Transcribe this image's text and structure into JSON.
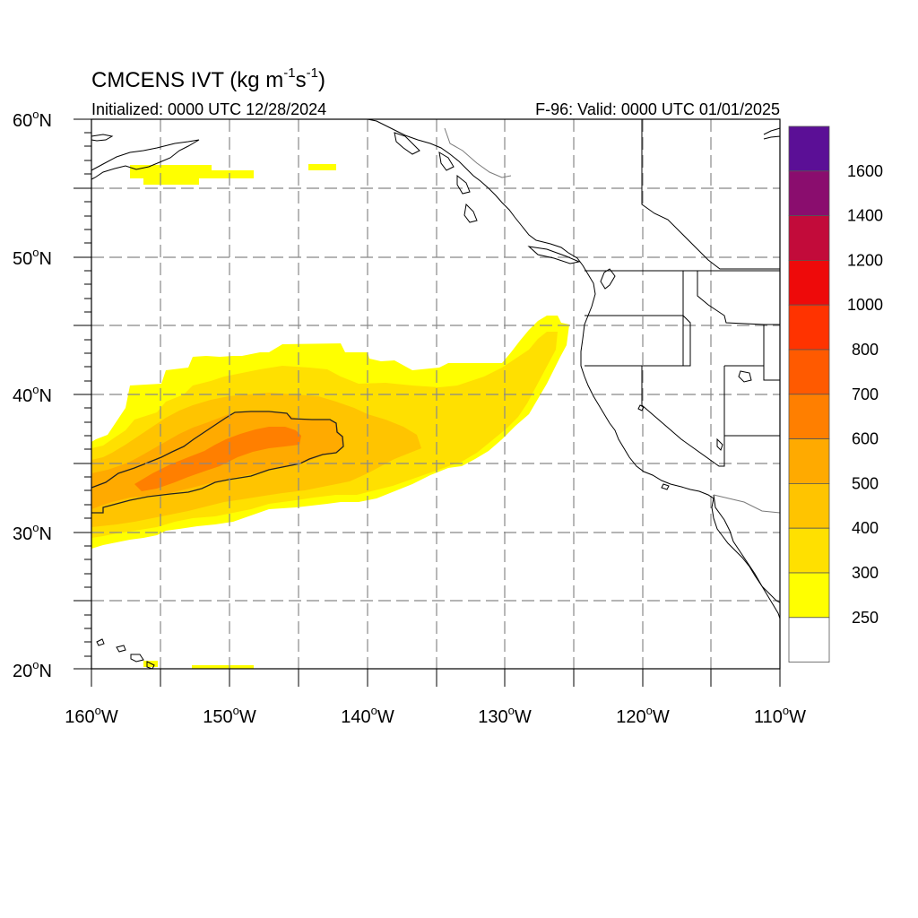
{
  "title": {
    "main": "CMCENS IVT (kg m",
    "unit_sup1": "-1",
    "unit_mid": "s",
    "unit_sup2": "-1",
    "unit_close": ")",
    "initialized": "Initialized: 0000 UTC 12/28/2024",
    "valid": "F-96: Valid: 0000 UTC 01/01/2025"
  },
  "map": {
    "lon_range": [
      -160,
      -110
    ],
    "lat_range": [
      20,
      60
    ],
    "lon_labels": [
      "160",
      "150",
      "140",
      "130",
      "120",
      "110"
    ],
    "lon_suffix": "W",
    "lat_labels": [
      "60",
      "50",
      "40",
      "30",
      "20"
    ],
    "lat_suffix": "N",
    "degree": "o",
    "grid": "dashed",
    "contour_level": 500
  },
  "colorbar": {
    "labels": [
      "1600",
      "1400",
      "1200",
      "1000",
      "800",
      "700",
      "600",
      "500",
      "400",
      "300",
      "250"
    ],
    "colors_top_to_bottom": [
      "#5b0f96",
      "#8a0d6e",
      "#c20b3a",
      "#ee0a0a",
      "#ff3300",
      "#ff5a00",
      "#ff7f00",
      "#ffaa00",
      "#ffc400",
      "#ffe000",
      "#ffff00",
      "#ffffff"
    ]
  },
  "chart_data": {
    "type": "heatmap",
    "variable": "IVT",
    "region": {
      "lon": [
        -160,
        -110
      ],
      "lat": [
        20,
        60
      ]
    },
    "levels": [
      250,
      300,
      400,
      500,
      600,
      700,
      800,
      1000,
      1200,
      1400,
      1600
    ],
    "features": [
      {
        "level_min": 250,
        "lon_range": [
          -160,
          -125
        ],
        "lat_range": [
          29,
          45.5
        ]
      },
      {
        "level_min": 300,
        "lon_range": [
          -160,
          -126
        ],
        "lat_range": [
          30,
          45
        ]
      },
      {
        "level_min": 400,
        "lon_range": [
          -160,
          -137
        ],
        "lat_range": [
          31,
          41
        ]
      },
      {
        "level_min": 500,
        "lon_range": [
          -160,
          -142
        ],
        "lat_range": [
          31.5,
          38.7
        ]
      },
      {
        "level_min": 600,
        "lon_range": [
          -155,
          -145
        ],
        "lat_range": [
          33,
          37.5
        ]
      },
      {
        "level_min": 250,
        "lon_range": [
          -157,
          -148
        ],
        "lat_range": [
          55.5,
          56.5
        ]
      },
      {
        "level_min": 250,
        "lon_range": [
          -145,
          -143
        ],
        "lat_range": [
          56,
          56.5
        ]
      },
      {
        "level_min": 250,
        "lon_range": [
          -156,
          -155
        ],
        "lat_range": [
          20.2,
          20.6
        ]
      },
      {
        "level_min": 250,
        "lon_range": [
          -152.5,
          -148
        ],
        "lat_range": [
          20,
          20.3
        ]
      }
    ]
  }
}
